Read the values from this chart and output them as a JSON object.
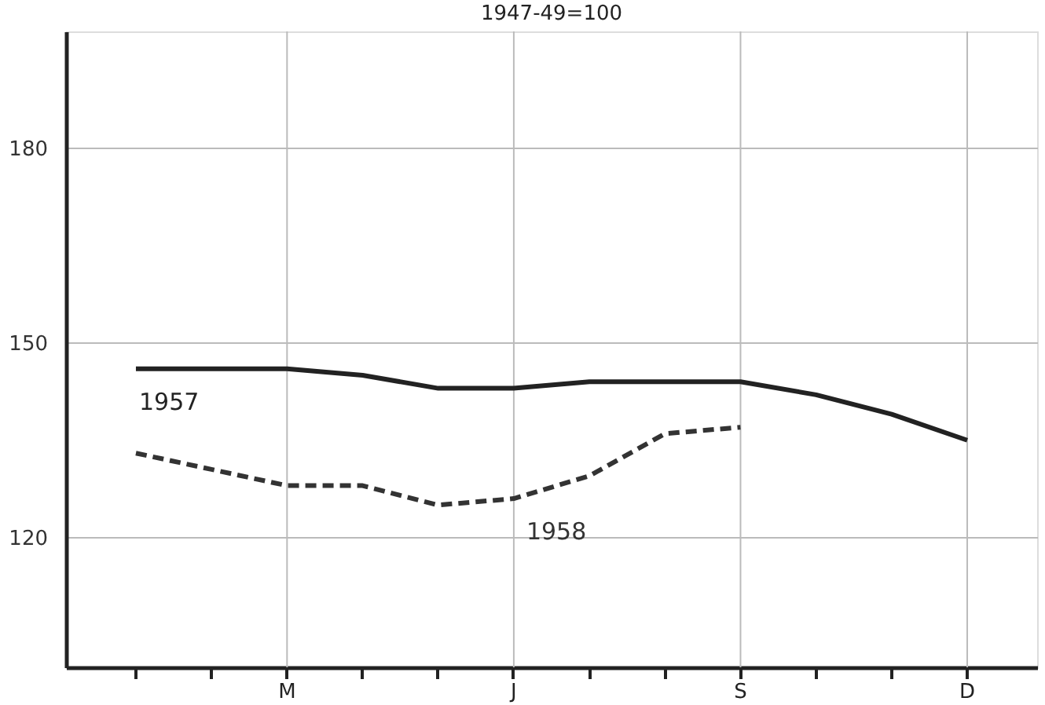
{
  "chart_data": {
    "type": "line",
    "title": "1947-49=100",
    "categories": [
      null,
      null,
      "M",
      null,
      null,
      "J",
      null,
      null,
      "S",
      null,
      null,
      "D"
    ],
    "series": [
      {
        "name": "1957",
        "color": "#222222",
        "line_style": "solid",
        "values": [
          146,
          146,
          146,
          145,
          143,
          143,
          144,
          144,
          144,
          142,
          139,
          135
        ]
      },
      {
        "name": "1958",
        "color": "#333333",
        "line_style": "dashed",
        "values": [
          133,
          130.5,
          128,
          128,
          125,
          126,
          129.5,
          136,
          137,
          null,
          null,
          null
        ]
      }
    ],
    "ylim": [
      100,
      198
    ],
    "yticks": [
      120,
      150,
      180
    ],
    "grid": true,
    "legend": false,
    "marker": "none"
  }
}
